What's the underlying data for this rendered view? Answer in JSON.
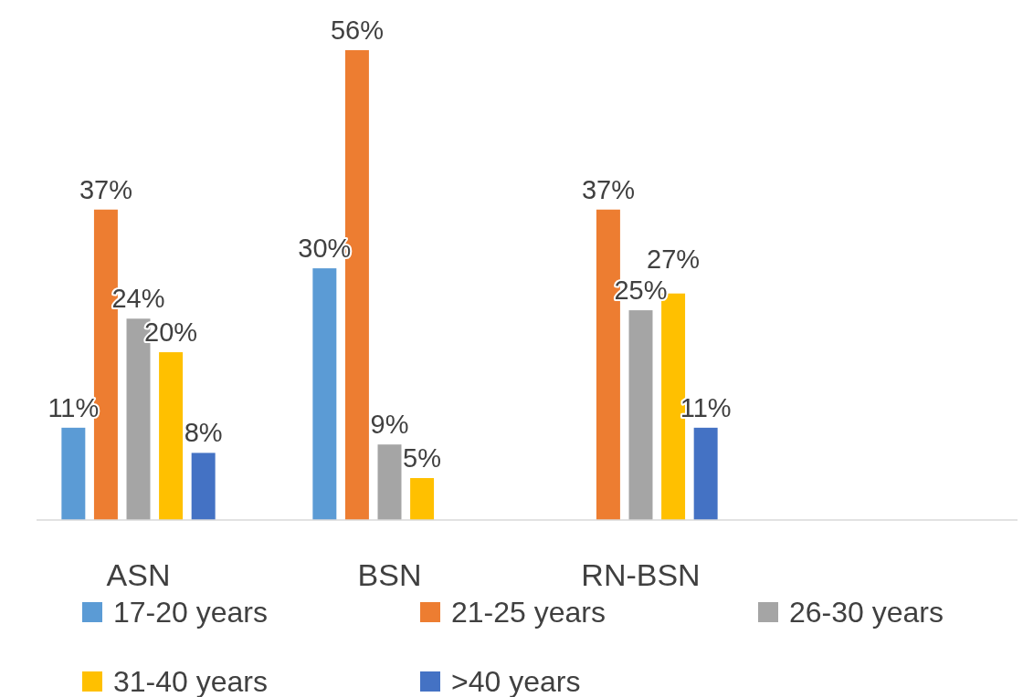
{
  "chart_data": {
    "type": "bar",
    "categories": [
      "ASN",
      "BSN",
      "RN-BSN",
      null
    ],
    "legend": "bottom",
    "series": [
      {
        "name": "17-20 years",
        "color": "#5b9bd5",
        "values": [
          11,
          30,
          null,
          null
        ],
        "value_labels": [
          "11%",
          "30%",
          null,
          null
        ]
      },
      {
        "name": "21-25 years",
        "color": "#ed7d31",
        "values": [
          37,
          56,
          37,
          null
        ],
        "value_labels": [
          "37%",
          "56%",
          "37%",
          null
        ]
      },
      {
        "name": "26-30 years",
        "color": "#a5a5a5",
        "values": [
          24,
          9,
          25,
          null
        ],
        "value_labels": [
          "24%",
          "9%",
          "25%",
          null
        ]
      },
      {
        "name": "31-40 years",
        "color": "#ffc000",
        "values": [
          20,
          5,
          27,
          null
        ],
        "value_labels": [
          "20%",
          "5%",
          "27%",
          null
        ]
      },
      {
        "name": ">40 years",
        "color": "#4472c4",
        "values": [
          8,
          null,
          11,
          null
        ],
        "value_labels": [
          "8%",
          null,
          "11%",
          null
        ]
      }
    ]
  }
}
